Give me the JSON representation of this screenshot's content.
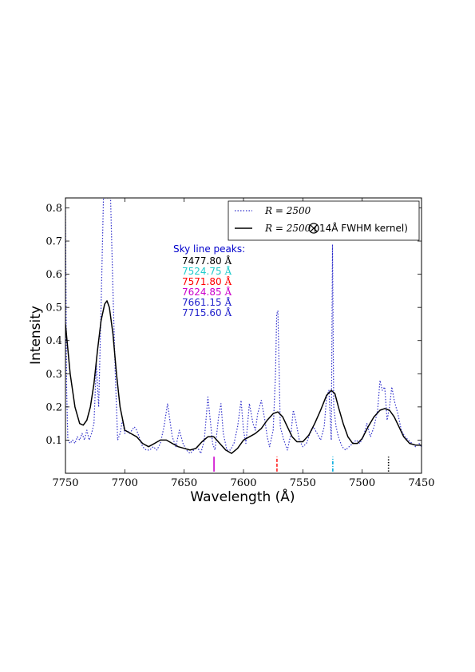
{
  "chart_data": {
    "type": "line",
    "xlabel": "Wavelength (Å)",
    "ylabel": "Intensity",
    "xlim": [
      7750,
      7450
    ],
    "ylim": [
      0.0,
      0.83
    ],
    "x_ticks": [
      "7750",
      "7700",
      "7650",
      "7600",
      "7550",
      "7500",
      "7450"
    ],
    "x_tick_values": [
      7750,
      7700,
      7650,
      7600,
      7550,
      7500,
      7450
    ],
    "y_ticks": [
      "0.1",
      "0.2",
      "0.3",
      "0.4",
      "0.5",
      "0.6",
      "0.7",
      "0.8"
    ],
    "y_tick_values": [
      0.1,
      0.2,
      0.3,
      0.4,
      0.5,
      0.6,
      0.7,
      0.8
    ],
    "legend_position": "top-right",
    "series": [
      {
        "name": "R = 2500",
        "legend_label": "R = 2500",
        "style": "dotted",
        "color": "#3333cc",
        "x": [
          7750,
          7749,
          7748,
          7746,
          7744,
          7742,
          7740,
          7738,
          7736,
          7734,
          7732,
          7730,
          7728,
          7726,
          7724,
          7722,
          7720,
          7718,
          7716,
          7714,
          7712,
          7710,
          7708,
          7706,
          7704,
          7702,
          7700,
          7698,
          7696,
          7694,
          7692,
          7690,
          7688,
          7685,
          7682,
          7679,
          7676,
          7673,
          7670,
          7667,
          7664,
          7662,
          7660,
          7657,
          7654,
          7651,
          7648,
          7645,
          7642,
          7639,
          7636,
          7633,
          7630,
          7628,
          7626,
          7624,
          7621,
          7619,
          7617,
          7614,
          7611,
          7608,
          7605,
          7602,
          7600,
          7598,
          7595,
          7592,
          7590,
          7588,
          7585,
          7582,
          7580,
          7578,
          7575,
          7573,
          7572,
          7571,
          7569,
          7566,
          7563,
          7560,
          7558,
          7556,
          7553,
          7550,
          7547,
          7544,
          7541,
          7538,
          7535,
          7532,
          7530,
          7528,
          7526,
          7525,
          7524,
          7522,
          7520,
          7517,
          7514,
          7511,
          7508,
          7505,
          7502,
          7499,
          7496,
          7493,
          7490,
          7487,
          7485,
          7483,
          7481,
          7479,
          7477,
          7475,
          7473,
          7470,
          7467,
          7464,
          7461,
          7458,
          7455,
          7452,
          7450
        ],
        "y": [
          0.8,
          0.25,
          0.1,
          0.09,
          0.1,
          0.09,
          0.11,
          0.1,
          0.12,
          0.1,
          0.13,
          0.1,
          0.12,
          0.15,
          0.33,
          0.2,
          0.5,
          0.83,
          0.83,
          0.83,
          0.83,
          0.55,
          0.3,
          0.1,
          0.12,
          0.16,
          0.12,
          0.13,
          0.12,
          0.13,
          0.14,
          0.13,
          0.11,
          0.08,
          0.07,
          0.07,
          0.08,
          0.07,
          0.09,
          0.14,
          0.21,
          0.16,
          0.11,
          0.08,
          0.13,
          0.09,
          0.07,
          0.06,
          0.07,
          0.08,
          0.06,
          0.1,
          0.23,
          0.16,
          0.09,
          0.07,
          0.17,
          0.21,
          0.12,
          0.07,
          0.07,
          0.09,
          0.14,
          0.22,
          0.13,
          0.09,
          0.21,
          0.15,
          0.13,
          0.18,
          0.22,
          0.16,
          0.11,
          0.08,
          0.13,
          0.3,
          0.48,
          0.49,
          0.14,
          0.1,
          0.07,
          0.12,
          0.19,
          0.16,
          0.1,
          0.08,
          0.09,
          0.12,
          0.14,
          0.12,
          0.1,
          0.14,
          0.23,
          0.25,
          0.1,
          0.69,
          0.2,
          0.14,
          0.11,
          0.08,
          0.07,
          0.08,
          0.09,
          0.1,
          0.09,
          0.11,
          0.15,
          0.11,
          0.14,
          0.19,
          0.28,
          0.25,
          0.26,
          0.16,
          0.2,
          0.26,
          0.22,
          0.18,
          0.13,
          0.11,
          0.1,
          0.09,
          0.08,
          0.09,
          0.08
        ]
      },
      {
        "name": "R = 2500 (⊗ 14Å FWHM kernel)",
        "legend_label_math": "R = 2500 (",
        "legend_label_text": " 14Å FWHM kernel)",
        "style": "solid",
        "color": "#000000",
        "x": [
          7750,
          7746,
          7742,
          7738,
          7735,
          7732,
          7729,
          7726,
          7723,
          7720,
          7717,
          7715,
          7713,
          7710,
          7707,
          7704,
          7700,
          7695,
          7690,
          7685,
          7680,
          7675,
          7670,
          7665,
          7660,
          7655,
          7650,
          7645,
          7640,
          7635,
          7630,
          7625,
          7620,
          7615,
          7610,
          7605,
          7600,
          7595,
          7590,
          7585,
          7580,
          7575,
          7571,
          7567,
          7563,
          7559,
          7555,
          7550,
          7545,
          7540,
          7535,
          7530,
          7526,
          7523,
          7520,
          7516,
          7512,
          7508,
          7504,
          7500,
          7495,
          7490,
          7485,
          7481,
          7477,
          7473,
          7469,
          7465,
          7460,
          7455,
          7450
        ],
        "y": [
          0.45,
          0.3,
          0.2,
          0.15,
          0.145,
          0.16,
          0.2,
          0.27,
          0.37,
          0.46,
          0.51,
          0.52,
          0.5,
          0.42,
          0.3,
          0.2,
          0.13,
          0.12,
          0.11,
          0.09,
          0.08,
          0.09,
          0.1,
          0.1,
          0.09,
          0.08,
          0.075,
          0.07,
          0.075,
          0.095,
          0.11,
          0.11,
          0.09,
          0.07,
          0.06,
          0.075,
          0.1,
          0.11,
          0.12,
          0.135,
          0.16,
          0.18,
          0.185,
          0.17,
          0.14,
          0.11,
          0.095,
          0.095,
          0.115,
          0.15,
          0.19,
          0.235,
          0.25,
          0.24,
          0.2,
          0.15,
          0.11,
          0.09,
          0.09,
          0.105,
          0.14,
          0.17,
          0.19,
          0.195,
          0.19,
          0.17,
          0.14,
          0.11,
          0.09,
          0.085,
          0.085
        ]
      }
    ],
    "peak_markers": [
      {
        "x": 7477.8,
        "color": "#000000",
        "style": "dotted",
        "y_from": 0.005,
        "y_to": 0.05
      },
      {
        "x": 7524.75,
        "color": "#00aadd",
        "style": "dashdot",
        "y_from": 0.005,
        "y_to": 0.05
      },
      {
        "x": 7571.8,
        "color": "#ff2222",
        "style": "dashed",
        "y_from": 0.005,
        "y_to": 0.05
      },
      {
        "x": 7624.85,
        "color": "#cc00cc",
        "style": "solid",
        "y_from": 0.005,
        "y_to": 0.05
      }
    ],
    "annotations": {
      "title": "Sky line peaks:",
      "unit": "Å",
      "peaks": [
        {
          "value": "7477.80",
          "color": "#000000"
        },
        {
          "value": "7524.75",
          "color": "#22cccc"
        },
        {
          "value": "7571.80",
          "color": "#ff0000"
        },
        {
          "value": "7624.85",
          "color": "#cc00cc"
        },
        {
          "value": "7661.15",
          "color": "#2222cc"
        },
        {
          "value": "7715.60",
          "color": "#2222cc"
        }
      ]
    }
  }
}
